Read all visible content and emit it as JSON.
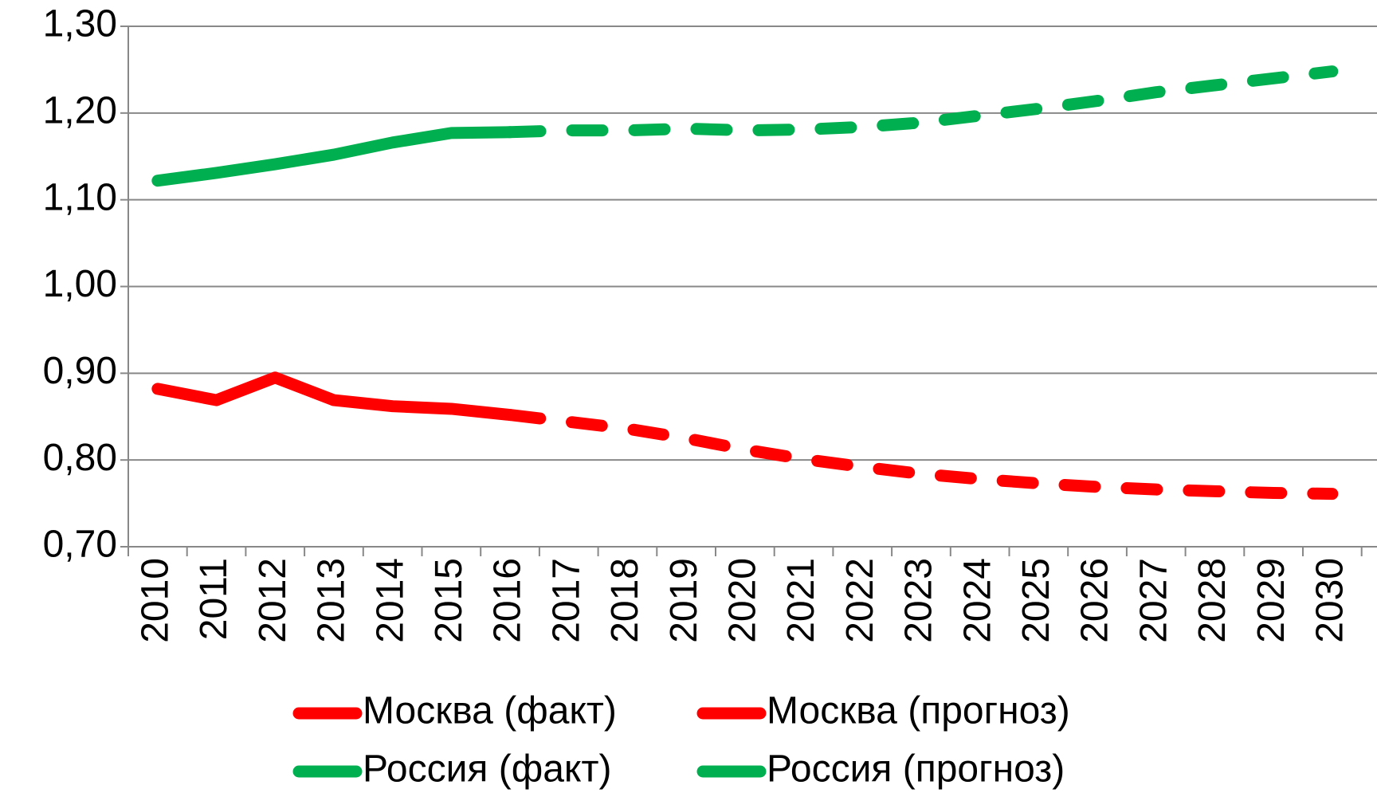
{
  "chart_data": {
    "type": "line",
    "categories": [
      "2010",
      "2011",
      "2012",
      "2013",
      "2014",
      "2015",
      "2016",
      "2017",
      "2018",
      "2019",
      "2020",
      "2021",
      "2022",
      "2023",
      "2024",
      "2025",
      "2026",
      "2027",
      "2028",
      "2029",
      "2030"
    ],
    "series": [
      {
        "name": "Москва (факт)",
        "color": "#ff0000",
        "dash": false,
        "values": [
          0.882,
          0.869,
          0.895,
          0.869,
          0.862,
          0.859,
          0.852,
          null,
          null,
          null,
          null,
          null,
          null,
          null,
          null,
          null,
          null,
          null,
          null,
          null,
          null
        ]
      },
      {
        "name": "Москва (прогноз)",
        "color": "#ff0000",
        "dash": true,
        "values": [
          null,
          null,
          null,
          null,
          null,
          null,
          0.852,
          0.844,
          0.836,
          0.825,
          0.812,
          0.801,
          0.792,
          0.784,
          0.778,
          0.773,
          0.769,
          0.766,
          0.764,
          0.762,
          0.761
        ]
      },
      {
        "name": "Россия (факт)",
        "color": "#00b050",
        "dash": false,
        "values": [
          1.122,
          1.131,
          1.141,
          1.152,
          1.166,
          1.177,
          1.178,
          null,
          null,
          null,
          null,
          null,
          null,
          null,
          null,
          null,
          null,
          null,
          null,
          null,
          null
        ]
      },
      {
        "name": "Россия (прогноз)",
        "color": "#00b050",
        "dash": true,
        "values": [
          null,
          null,
          null,
          null,
          null,
          null,
          1.178,
          1.18,
          1.18,
          1.182,
          1.18,
          1.181,
          1.184,
          1.189,
          1.197,
          1.205,
          1.214,
          1.224,
          1.232,
          1.24,
          1.248
        ]
      }
    ],
    "ylim": [
      0.7,
      1.3
    ],
    "yticks": [
      {
        "value": 0.7,
        "label": "0,70"
      },
      {
        "value": 0.8,
        "label": "0,80"
      },
      {
        "value": 0.9,
        "label": "0,90"
      },
      {
        "value": 1.0,
        "label": "1,00"
      },
      {
        "value": 1.1,
        "label": "1,10"
      },
      {
        "value": 1.2,
        "label": "1,20"
      },
      {
        "value": 1.3,
        "label": "1,30"
      }
    ],
    "grid": true,
    "legend": "bottom"
  }
}
